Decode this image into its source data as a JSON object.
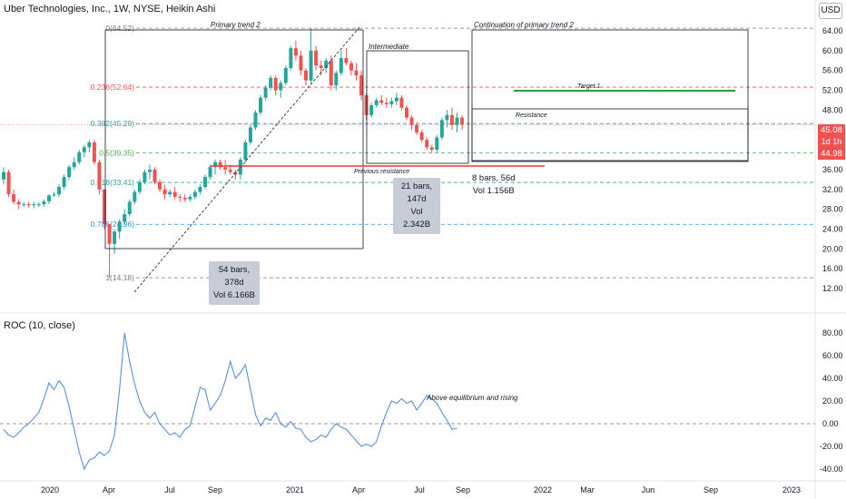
{
  "header": {
    "title": "Uber Technologies, Inc., 1W, NYSE, Heikin Ashi",
    "currency": "USD",
    "roc_label": "ROC (10, close)"
  },
  "price_tags": {
    "last": "45.08",
    "countdown": "1d 1h",
    "open": "44.98"
  },
  "colors": {
    "up": "#26a69a",
    "down": "#ef5350",
    "roc_line": "#5b8fd9",
    "trendline": "#131722",
    "previous_resistance": "#e53935",
    "target": "#2e9b3f"
  },
  "chart_data": [
    {
      "type": "candlestick",
      "style": "Heikin Ashi",
      "y_ticks": [
        12,
        16,
        20,
        24,
        28,
        32,
        36,
        40,
        44,
        48,
        52,
        56,
        60,
        64
      ],
      "ylim": [
        11,
        66
      ],
      "x_ticks": [
        "2020",
        "Apr",
        "Jul",
        "Sep",
        "2021",
        "Apr",
        "Jul",
        "Sep",
        "2022",
        "Mar",
        "Jun",
        "Sep",
        "2023"
      ],
      "fib_levels": [
        {
          "label": "0(64.52)",
          "value": 64.52,
          "color": "#787b86"
        },
        {
          "label": "0.236(52.64)",
          "value": 52.64,
          "color": "#ef5350"
        },
        {
          "label": "0.382(45.29)",
          "value": 45.29,
          "color": "#26a69a"
        },
        {
          "label": "0.5(39.35)",
          "value": 39.35,
          "color": "#4caf50"
        },
        {
          "label": "0.618(33.41)",
          "value": 33.41,
          "color": "#26a69a"
        },
        {
          "label": "0.786(24.96)",
          "value": 24.96,
          "color": "#2196f3"
        },
        {
          "label": "1(14.18)",
          "value": 14.18,
          "color": "#787b86"
        }
      ],
      "annotations": {
        "primary_trend": "Primary trend 2",
        "intermediate": "Intermediate",
        "continuation": "Continuation of primary trend 2",
        "target": "Target 1",
        "resistance": "Resistance",
        "previous_resistance": "Previous resistance"
      },
      "measure_boxes": [
        {
          "bars": "54 bars, 378d",
          "vol": "Vol 6.166B"
        },
        {
          "bars": "21 bars, 147d",
          "vol": "Vol 2.342B"
        },
        {
          "bars": "8 bars, 56d",
          "vol": "Vol 1.156B"
        }
      ],
      "candles": [
        {
          "o": 34,
          "h": 36.5,
          "l": 33,
          "c": 35.5
        },
        {
          "o": 35.5,
          "h": 36,
          "l": 30.5,
          "c": 31
        },
        {
          "o": 31,
          "h": 32,
          "l": 29,
          "c": 29.5
        },
        {
          "o": 29.5,
          "h": 30,
          "l": 28,
          "c": 29
        },
        {
          "o": 29,
          "h": 29.5,
          "l": 28.5,
          "c": 29
        },
        {
          "o": 29,
          "h": 29.5,
          "l": 28.3,
          "c": 28.8
        },
        {
          "o": 28.8,
          "h": 29.5,
          "l": 28.2,
          "c": 29
        },
        {
          "o": 29,
          "h": 29.4,
          "l": 28.5,
          "c": 29
        },
        {
          "o": 29,
          "h": 30,
          "l": 28.5,
          "c": 29.6
        },
        {
          "o": 29.6,
          "h": 31,
          "l": 29,
          "c": 30.8
        },
        {
          "o": 30.8,
          "h": 31.5,
          "l": 30.5,
          "c": 31
        },
        {
          "o": 31,
          "h": 33,
          "l": 30.5,
          "c": 32.5
        },
        {
          "o": 32.5,
          "h": 35,
          "l": 32,
          "c": 34.5
        },
        {
          "o": 34.5,
          "h": 37,
          "l": 34,
          "c": 36.5
        },
        {
          "o": 36.5,
          "h": 38.5,
          "l": 36,
          "c": 37.5
        },
        {
          "o": 37.5,
          "h": 40,
          "l": 37,
          "c": 39.5
        },
        {
          "o": 39.5,
          "h": 41,
          "l": 38.5,
          "c": 40.5
        },
        {
          "o": 40.5,
          "h": 42,
          "l": 39.5,
          "c": 41.5
        },
        {
          "o": 41.5,
          "h": 42,
          "l": 37,
          "c": 37.5
        },
        {
          "o": 37.5,
          "h": 38,
          "l": 31,
          "c": 32
        },
        {
          "o": 32,
          "h": 32,
          "l": 24,
          "c": 25
        },
        {
          "o": 25,
          "h": 25,
          "l": 14.18,
          "c": 21
        },
        {
          "o": 21,
          "h": 24,
          "l": 19,
          "c": 23.5
        },
        {
          "o": 23.5,
          "h": 26,
          "l": 22,
          "c": 25.5
        },
        {
          "o": 25.5,
          "h": 28,
          "l": 25,
          "c": 27
        },
        {
          "o": 27,
          "h": 30,
          "l": 26.5,
          "c": 29.5
        },
        {
          "o": 29.5,
          "h": 32,
          "l": 29,
          "c": 31.5
        },
        {
          "o": 31.5,
          "h": 34,
          "l": 31,
          "c": 33.5
        },
        {
          "o": 33.5,
          "h": 36,
          "l": 33,
          "c": 35.5
        },
        {
          "o": 35.5,
          "h": 37,
          "l": 34,
          "c": 36
        },
        {
          "o": 36,
          "h": 36.5,
          "l": 33,
          "c": 33.5
        },
        {
          "o": 33.5,
          "h": 34,
          "l": 31.5,
          "c": 32
        },
        {
          "o": 32,
          "h": 33,
          "l": 30,
          "c": 31
        },
        {
          "o": 31,
          "h": 32,
          "l": 30.5,
          "c": 31.5
        },
        {
          "o": 31.5,
          "h": 32.5,
          "l": 30,
          "c": 30.5
        },
        {
          "o": 30.5,
          "h": 31,
          "l": 29.5,
          "c": 30.3
        },
        {
          "o": 30.3,
          "h": 31,
          "l": 29.5,
          "c": 30
        },
        {
          "o": 30,
          "h": 31,
          "l": 29.5,
          "c": 30.5
        },
        {
          "o": 30.5,
          "h": 32,
          "l": 30,
          "c": 31.5
        },
        {
          "o": 31.5,
          "h": 33,
          "l": 31,
          "c": 32.5
        },
        {
          "o": 32.5,
          "h": 35,
          "l": 32,
          "c": 34.5
        },
        {
          "o": 34.5,
          "h": 37,
          "l": 34,
          "c": 36.5
        },
        {
          "o": 36.5,
          "h": 38,
          "l": 35,
          "c": 37.5
        },
        {
          "o": 37.5,
          "h": 38,
          "l": 36,
          "c": 36.5
        },
        {
          "o": 36.5,
          "h": 38,
          "l": 35,
          "c": 36
        },
        {
          "o": 36,
          "h": 37,
          "l": 35,
          "c": 35.5
        },
        {
          "o": 35.5,
          "h": 36,
          "l": 34,
          "c": 35
        },
        {
          "o": 35,
          "h": 38.5,
          "l": 34,
          "c": 38
        },
        {
          "o": 38,
          "h": 42,
          "l": 37.5,
          "c": 41.5
        },
        {
          "o": 41.5,
          "h": 45,
          "l": 41,
          "c": 44.5
        },
        {
          "o": 44.5,
          "h": 48,
          "l": 44,
          "c": 47.5
        },
        {
          "o": 47.5,
          "h": 51,
          "l": 47,
          "c": 50.5
        },
        {
          "o": 50.5,
          "h": 53,
          "l": 50,
          "c": 52.5
        },
        {
          "o": 52.5,
          "h": 55,
          "l": 52,
          "c": 54.5
        },
        {
          "o": 54.5,
          "h": 55,
          "l": 51,
          "c": 52
        },
        {
          "o": 52,
          "h": 54,
          "l": 50.5,
          "c": 53.5
        },
        {
          "o": 53.5,
          "h": 57,
          "l": 53,
          "c": 56.5
        },
        {
          "o": 56.5,
          "h": 61,
          "l": 56,
          "c": 60.5
        },
        {
          "o": 60.5,
          "h": 62,
          "l": 58,
          "c": 59
        },
        {
          "o": 59,
          "h": 60,
          "l": 55,
          "c": 56
        },
        {
          "o": 56,
          "h": 56.5,
          "l": 53,
          "c": 54
        },
        {
          "o": 54,
          "h": 64.52,
          "l": 53.5,
          "c": 60
        },
        {
          "o": 60,
          "h": 61,
          "l": 56,
          "c": 57
        },
        {
          "o": 57,
          "h": 58,
          "l": 55,
          "c": 56.5
        },
        {
          "o": 56.5,
          "h": 58.5,
          "l": 55.5,
          "c": 58
        },
        {
          "o": 58,
          "h": 59,
          "l": 52,
          "c": 53
        },
        {
          "o": 53,
          "h": 56,
          "l": 52,
          "c": 55.5
        },
        {
          "o": 55.5,
          "h": 60,
          "l": 55,
          "c": 58.5
        },
        {
          "o": 58.5,
          "h": 60.5,
          "l": 57,
          "c": 57.5
        },
        {
          "o": 57.5,
          "h": 58,
          "l": 55,
          "c": 56
        },
        {
          "o": 56,
          "h": 57.5,
          "l": 54,
          "c": 55
        },
        {
          "o": 55,
          "h": 56,
          "l": 50,
          "c": 51
        },
        {
          "o": 51,
          "h": 51.5,
          "l": 46,
          "c": 47
        },
        {
          "o": 47,
          "h": 49.5,
          "l": 46.5,
          "c": 49
        },
        {
          "o": 49,
          "h": 50.5,
          "l": 48.5,
          "c": 50
        },
        {
          "o": 50,
          "h": 51,
          "l": 49,
          "c": 49.5
        },
        {
          "o": 49.5,
          "h": 50.5,
          "l": 48.5,
          "c": 49.2
        },
        {
          "o": 49.2,
          "h": 50.5,
          "l": 48.5,
          "c": 49.8
        },
        {
          "o": 49.8,
          "h": 51.5,
          "l": 49,
          "c": 50.5
        },
        {
          "o": 50.5,
          "h": 51,
          "l": 48,
          "c": 48.5
        },
        {
          "o": 48.5,
          "h": 49,
          "l": 46,
          "c": 46.5
        },
        {
          "o": 46.5,
          "h": 47,
          "l": 44,
          "c": 45
        },
        {
          "o": 45,
          "h": 45.5,
          "l": 43,
          "c": 43.5
        },
        {
          "o": 43.5,
          "h": 44,
          "l": 41.5,
          "c": 42
        },
        {
          "o": 42,
          "h": 42.5,
          "l": 40,
          "c": 40.5
        },
        {
          "o": 40.5,
          "h": 41,
          "l": 39.5,
          "c": 40
        },
        {
          "o": 40,
          "h": 43,
          "l": 39.5,
          "c": 42.5
        },
        {
          "o": 42.5,
          "h": 46.5,
          "l": 42,
          "c": 46
        },
        {
          "o": 46,
          "h": 48,
          "l": 44.5,
          "c": 47
        },
        {
          "o": 47,
          "h": 48.5,
          "l": 44,
          "c": 45
        },
        {
          "o": 45,
          "h": 47.5,
          "l": 43.5,
          "c": 46.5
        },
        {
          "o": 46.5,
          "h": 47,
          "l": 44,
          "c": 45.08
        }
      ]
    },
    {
      "type": "line",
      "name": "ROC (10, close)",
      "y_ticks": [
        -40,
        -20,
        0,
        20,
        40,
        60,
        80
      ],
      "ylim": [
        -45,
        85
      ],
      "values": [
        -5,
        -10,
        -12,
        -8,
        -3,
        0,
        5,
        10,
        22,
        36,
        30,
        38,
        32,
        15,
        -5,
        -25,
        -40,
        -32,
        -30,
        -25,
        -28,
        -24,
        -10,
        30,
        80,
        55,
        35,
        20,
        10,
        5,
        10,
        0,
        -5,
        -10,
        -8,
        -12,
        -5,
        -2,
        15,
        32,
        30,
        12,
        18,
        25,
        38,
        55,
        40,
        45,
        52,
        30,
        8,
        -2,
        5,
        3,
        10,
        0,
        -3,
        2,
        -4,
        -5,
        -12,
        -16,
        -14,
        -10,
        -12,
        -5,
        0,
        -3,
        -5,
        -10,
        -15,
        -20,
        -18,
        -20,
        -16,
        -2,
        10,
        20,
        18,
        22,
        18,
        20,
        12,
        18,
        25,
        22,
        18,
        10,
        3,
        -5,
        -4
      ],
      "annotation": "Above equilibrium and rising"
    }
  ]
}
